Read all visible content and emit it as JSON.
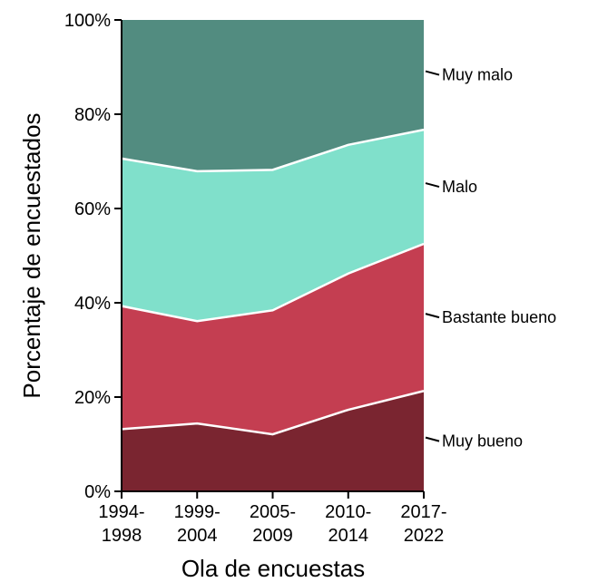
{
  "chart_data": {
    "type": "area",
    "stacked": true,
    "percent": true,
    "xlabel": "Ola de encuestas",
    "ylabel": "Porcentaje de encuestados",
    "categories": [
      [
        "1994-",
        "1998"
      ],
      [
        "1999-",
        "2004"
      ],
      [
        "2005-",
        "2009"
      ],
      [
        "2010-",
        "2014"
      ],
      [
        "2017-",
        "2022"
      ]
    ],
    "y_ticks": [
      "0%",
      "20%",
      "40%",
      "60%",
      "80%",
      "100%"
    ],
    "ylim": [
      0,
      100
    ],
    "grid": false,
    "legend_placement": "right (direct labels)",
    "series": [
      {
        "name": "Muy bueno",
        "color": "#7a2530",
        "values": [
          13.2,
          14.4,
          12.1,
          17.3,
          21.3
        ]
      },
      {
        "name": "Bastante bueno",
        "color": "#c43e51",
        "values": [
          26.1,
          21.7,
          26.3,
          28.9,
          31.2
        ]
      },
      {
        "name": "Malo",
        "color": "#80e0cb",
        "values": [
          31.3,
          31.8,
          29.8,
          27.3,
          24.2
        ]
      },
      {
        "name": "Muy malo",
        "color": "#528c80",
        "values": [
          29.4,
          32.1,
          31.8,
          26.5,
          23.3
        ]
      }
    ]
  }
}
